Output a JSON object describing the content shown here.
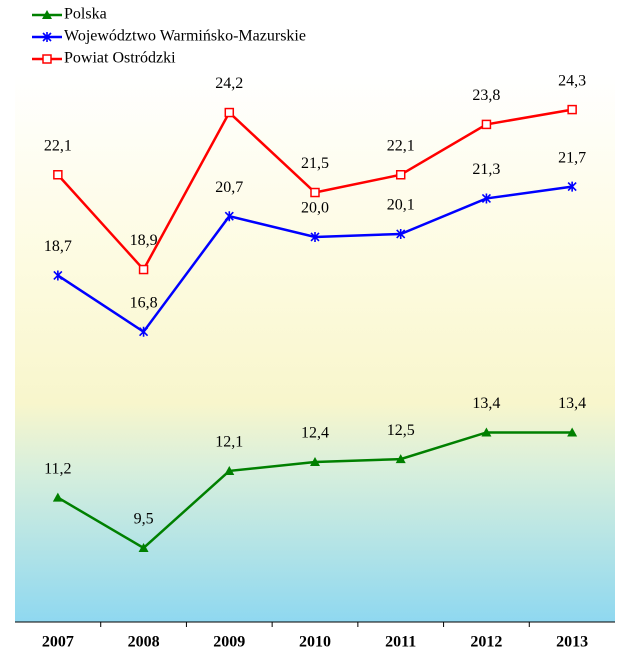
{
  "chart_data": {
    "type": "line",
    "categories": [
      "2007",
      "2008",
      "2009",
      "2010",
      "2011",
      "2012",
      "2013"
    ],
    "series": [
      {
        "name": "Polska",
        "color": "#008000",
        "marker": "triangle",
        "values": [
          11.2,
          9.5,
          12.1,
          12.4,
          12.5,
          13.4,
          13.4
        ],
        "value_labels": [
          "11,2",
          "9,5",
          "12,1",
          "12,4",
          "12,5",
          "13,4",
          "13,4"
        ]
      },
      {
        "name": "Województwo Warmińsko-Mazurskie",
        "color": "#0000ff",
        "marker": "star",
        "values": [
          18.7,
          16.8,
          20.7,
          20.0,
          20.1,
          21.3,
          21.7
        ],
        "value_labels": [
          "18,7",
          "16,8",
          "20,7",
          "20,0",
          "20,1",
          "21,3",
          "21,7"
        ]
      },
      {
        "name": "Powiat Ostródzki",
        "color": "#ff0000",
        "marker": "square",
        "values": [
          22.1,
          18.9,
          24.2,
          21.5,
          22.1,
          23.8,
          24.3
        ],
        "value_labels": [
          "22,1",
          "18,9",
          "24,2",
          "21,5",
          "22,1",
          "23,8",
          "24,3"
        ]
      }
    ],
    "ylim": [
      7,
      28
    ],
    "legend": "top-left",
    "grid": false
  }
}
